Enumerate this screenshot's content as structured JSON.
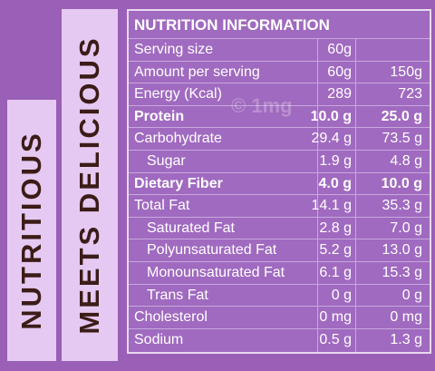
{
  "side_text": [
    "NUTRITIOUS",
    "MEETS DELICIOUS"
  ],
  "watermark": "© 1mg",
  "table": {
    "title": "NUTRITION INFORMATION",
    "rows": [
      {
        "cells": [
          "Serving size",
          "60g"
        ]
      },
      {
        "cells": [
          "Amount per serving",
          "60g",
          "150g"
        ]
      },
      {
        "cells": [
          "Energy (Kcal)",
          "289",
          "723"
        ]
      },
      {
        "cells": [
          "Protein",
          "10.0 g",
          "25.0 g"
        ],
        "bold": true
      },
      {
        "cells": [
          "Carbohydrate",
          "29.4 g",
          "73.5 g"
        ]
      },
      {
        "cells": [
          "Sugar",
          "1.9 g",
          "4.8 g"
        ],
        "indent": true
      },
      {
        "cells": [
          "Dietary Fiber",
          "4.0 g",
          "10.0 g"
        ],
        "bold": true
      },
      {
        "cells": [
          "Total Fat",
          "14.1 g",
          "35.3 g"
        ]
      },
      {
        "cells": [
          "Saturated Fat",
          "2.8 g",
          "7.0 g"
        ],
        "indent": true
      },
      {
        "cells": [
          "Polyunsaturated Fat",
          "5.2 g",
          "13.0 g"
        ],
        "indent": true
      },
      {
        "cells": [
          "Monounsaturated Fat",
          "6.1 g",
          "15.3 g"
        ],
        "indent": true
      },
      {
        "cells": [
          "Trans Fat",
          "0 g",
          "0 g"
        ],
        "indent": true
      },
      {
        "cells": [
          "Cholesterol",
          "0 mg",
          "0 mg"
        ]
      },
      {
        "cells": [
          "Sodium",
          "0.5 g",
          "1.3 g"
        ]
      }
    ]
  }
}
